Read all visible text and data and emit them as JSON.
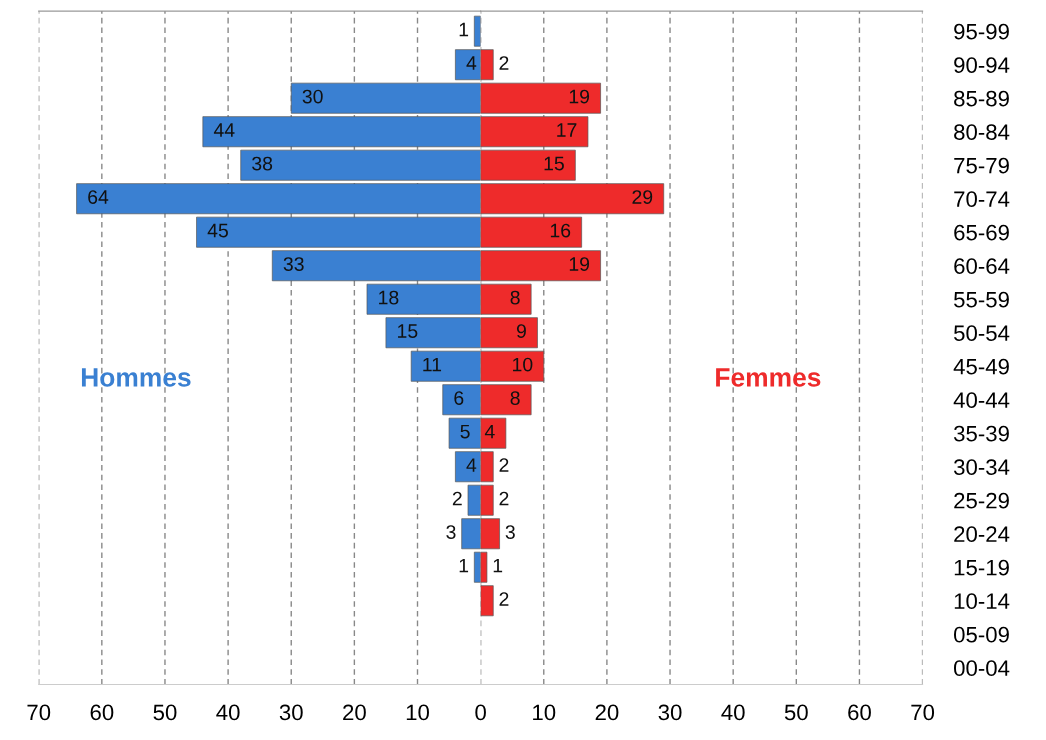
{
  "chart_data": [
    {
      "type": "bar",
      "orientation": "horizontal",
      "categories": [
        null,
        null,
        null,
        null,
        null,
        null,
        null,
        null,
        null,
        null,
        null,
        null,
        null,
        null,
        null,
        null,
        null,
        null,
        null,
        null
      ],
      "series": [
        {
          "name": "Hommes",
          "color": "#3a80d2",
          "values": [
            1,
            4,
            30,
            44,
            38,
            64,
            45,
            33,
            18,
            15,
            11,
            6,
            5,
            4,
            2,
            3,
            1,
            null,
            null,
            null
          ]
        }
      ],
      "xlim": [
        70,
        0
      ],
      "xticks": [
        70,
        60,
        50,
        40,
        30,
        20,
        10
      ],
      "data_labels": true,
      "grid": "x",
      "line_style": "dashed"
    },
    {
      "type": "bar",
      "orientation": "horizontal",
      "categories": [
        "95-99",
        "90-94",
        "85-89",
        "80-84",
        "75-79",
        "70-74",
        "65-69",
        "60-64",
        "55-59",
        "50-54",
        "45-49",
        "40-44",
        "35-39",
        "30-34",
        "25-29",
        "20-24",
        "15-19",
        "10-14",
        "05-09",
        "00-04"
      ],
      "series": [
        {
          "name": "Femmes",
          "color": "#ee2b2b",
          "values": [
            null,
            2,
            19,
            17,
            15,
            29,
            16,
            19,
            8,
            9,
            10,
            8,
            4,
            2,
            2,
            3,
            1,
            2,
            null,
            null
          ]
        }
      ],
      "xlim": [
        0,
        70
      ],
      "xticks": [
        0,
        10,
        20,
        30,
        40,
        50,
        60,
        70
      ],
      "data_labels": true,
      "grid": "x",
      "line_style": "dashed"
    }
  ]
}
